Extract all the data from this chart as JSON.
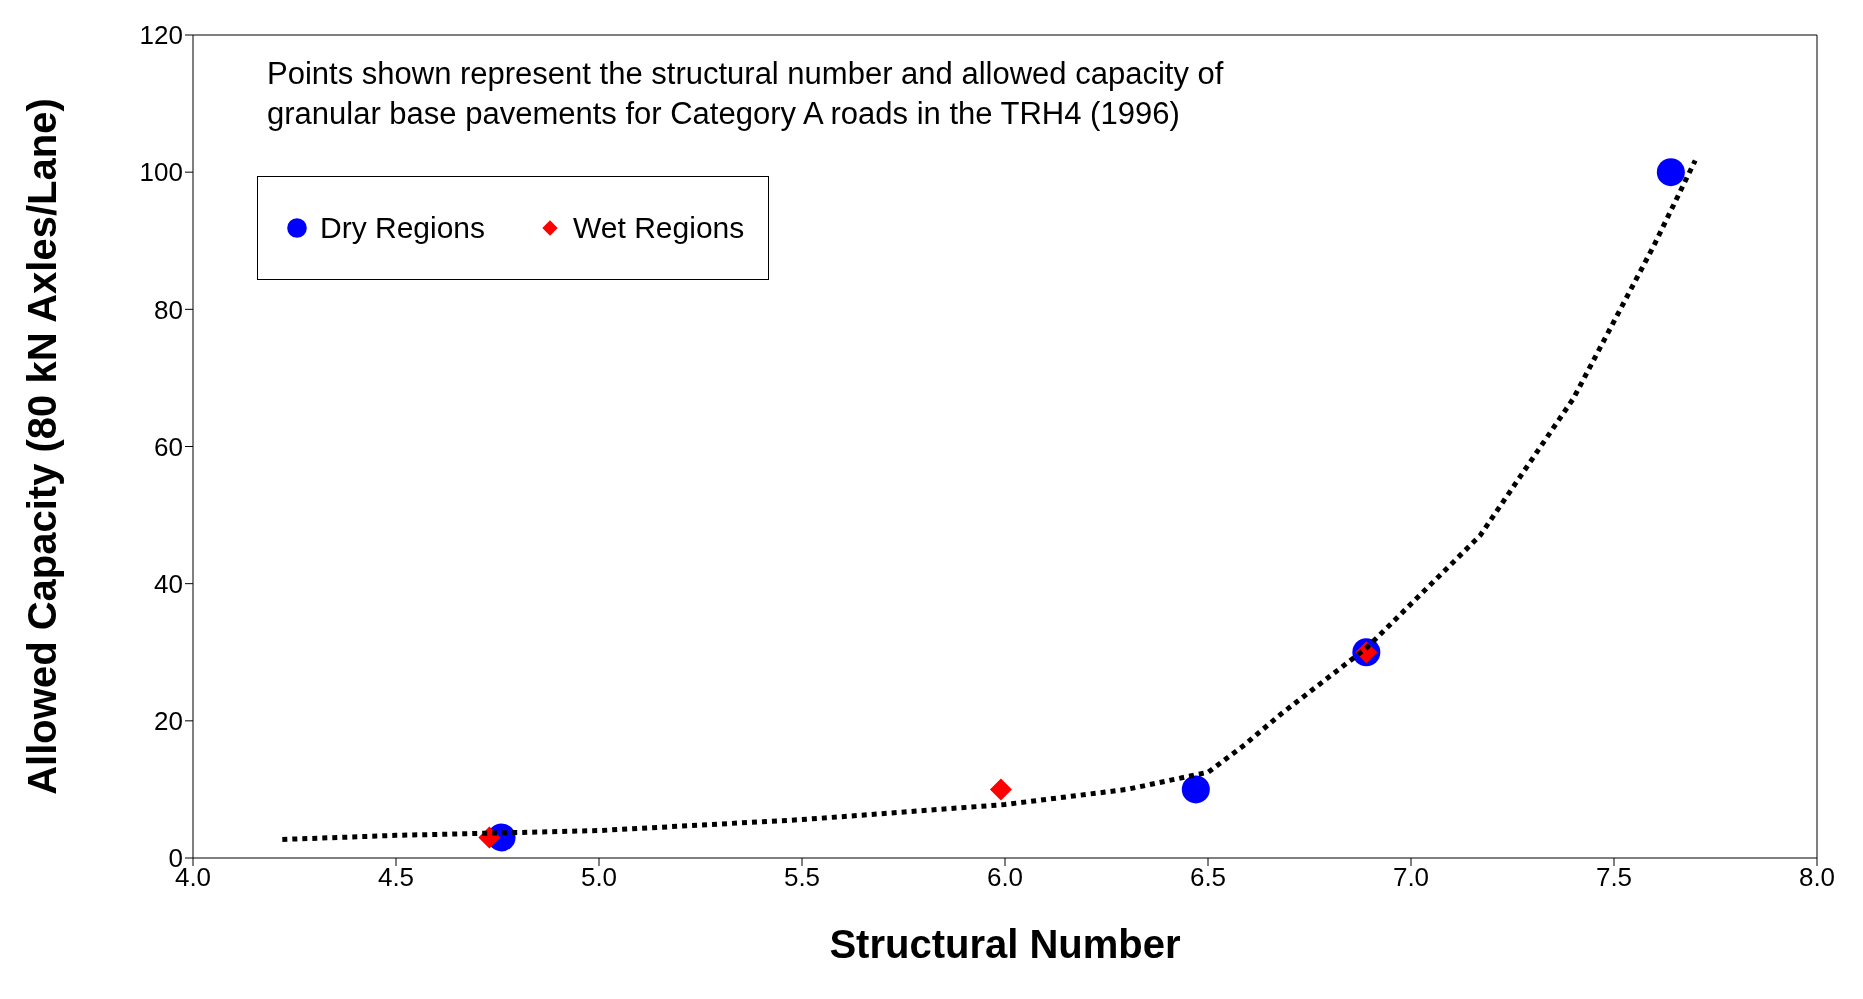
{
  "chart_data": {
    "type": "scatter",
    "xlabel": "Structural Number",
    "ylabel": "Allowed Capacity (80 kN Axles/Lane)",
    "annotations": [
      "Points shown represent the structural number and allowed capacity of granular base pavements for Category A roads in the TRH4 (1996)"
    ],
    "xlim": [
      4.0,
      8.0
    ],
    "xticks": [
      {
        "value": 4,
        "label": "4.0"
      },
      {
        "value": 4.5,
        "label": "4.5"
      },
      {
        "value": 5,
        "label": "5.0"
      },
      {
        "value": 5.5,
        "label": "5.5"
      },
      {
        "value": 6,
        "label": "6.0"
      },
      {
        "value": 6.5,
        "label": "6.5"
      },
      {
        "value": 7,
        "label": "7.0"
      },
      {
        "value": 7.5,
        "label": "7.5"
      },
      {
        "value": 8,
        "label": "8.0"
      }
    ],
    "ylim": [
      0,
      120
    ],
    "yticks": [
      0,
      20,
      40,
      60,
      80,
      100,
      120
    ],
    "legend": "top left",
    "series": [
      {
        "name": "Dry Regions",
        "marker": "circle",
        "color": "#0000ff",
        "x": [
          4.76,
          6.47,
          6.89,
          7.64
        ],
        "values": [
          3,
          10,
          30,
          100
        ]
      },
      {
        "name": "Wet Regions",
        "marker": "diamond",
        "color": "#ff0000",
        "x": [
          4.73,
          5.99,
          6.89
        ],
        "values": [
          3,
          10,
          30
        ]
      },
      {
        "type": "line",
        "marker": "none",
        "line_style": "dotted",
        "color": "#000000",
        "x": [
          4.22,
          4.5,
          5.0,
          5.5,
          6.0,
          6.3,
          6.5,
          6.59,
          6.68,
          6.89,
          7.17,
          7.4,
          7.6,
          7.7
        ],
        "values": [
          2.7,
          3.3,
          4.0,
          5.6,
          7.8,
          10,
          12.5,
          16.5,
          21,
          30.6,
          47,
          67,
          89.5,
          101.7
        ]
      }
    ]
  }
}
